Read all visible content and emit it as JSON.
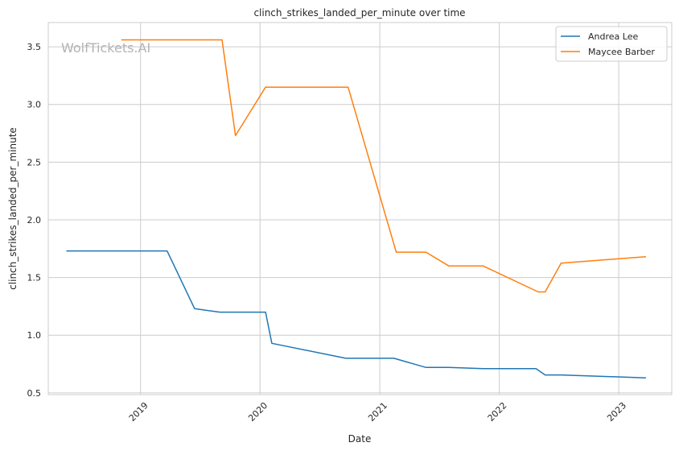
{
  "chart_data": {
    "type": "line",
    "title": "clinch_strikes_landed_per_minute over time",
    "xlabel": "Date",
    "ylabel": "clinch_strikes_landed_per_minute",
    "watermark": "WolfTickets.AI",
    "xlim": [
      "2018-03-25",
      "2023-06-12"
    ],
    "ylim": [
      0.485,
      3.71
    ],
    "x_ticks": [
      "2019",
      "2020",
      "2021",
      "2022",
      "2023"
    ],
    "y_ticks": [
      "0.5",
      "1.0",
      "1.5",
      "2.0",
      "2.5",
      "3.0",
      "3.5"
    ],
    "grid": true,
    "legend_position": "top-right",
    "series": [
      {
        "name": "Andrea Lee",
        "color": "#1f77b4",
        "points": [
          [
            "2018-05-19",
            1.73
          ],
          [
            "2019-03-23",
            1.73
          ],
          [
            "2019-06-15",
            1.23
          ],
          [
            "2019-08-31",
            1.2
          ],
          [
            "2020-01-18",
            1.2
          ],
          [
            "2020-02-06",
            0.93
          ],
          [
            "2020-09-19",
            0.8
          ],
          [
            "2021-02-13",
            0.8
          ],
          [
            "2021-05-22",
            0.72
          ],
          [
            "2021-07-31",
            0.72
          ],
          [
            "2021-11-13",
            0.71
          ],
          [
            "2022-04-23",
            0.71
          ],
          [
            "2022-05-21",
            0.655
          ],
          [
            "2022-07-09",
            0.655
          ],
          [
            "2023-03-25",
            0.63
          ]
        ]
      },
      {
        "name": "Maycee Barber",
        "color": "#ff7f0e",
        "points": [
          [
            "2018-11-03",
            3.56
          ],
          [
            "2019-09-07",
            3.56
          ],
          [
            "2019-10-18",
            2.73
          ],
          [
            "2020-01-18",
            3.15
          ],
          [
            "2020-09-26",
            3.15
          ],
          [
            "2021-02-20",
            1.72
          ],
          [
            "2021-05-22",
            1.72
          ],
          [
            "2021-07-31",
            1.6
          ],
          [
            "2021-11-13",
            1.6
          ],
          [
            "2022-04-30",
            1.375
          ],
          [
            "2022-05-21",
            1.375
          ],
          [
            "2022-07-09",
            1.625
          ],
          [
            "2023-03-25",
            1.68
          ]
        ]
      }
    ]
  }
}
